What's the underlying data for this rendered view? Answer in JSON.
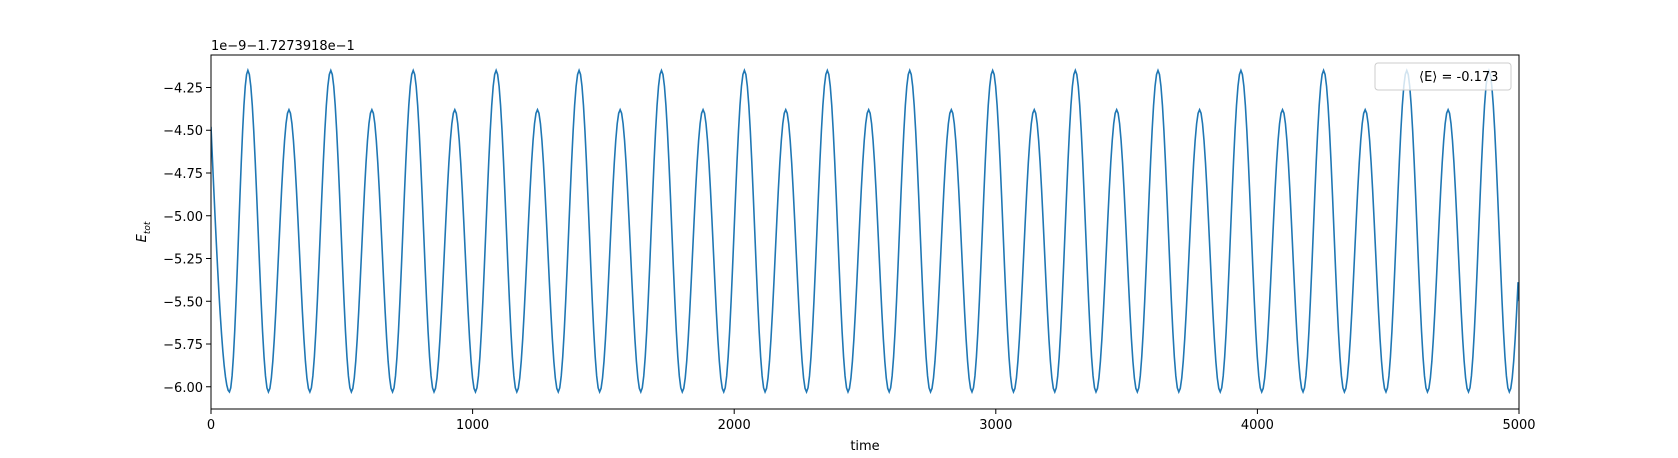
{
  "chart_data": {
    "type": "line",
    "title": "",
    "xlabel": "time",
    "ylabel_main": "E",
    "ylabel_sub": "tot",
    "offset_text": "1e−9−1.7273918e−1",
    "xlim": [
      0,
      5000
    ],
    "ylim": [
      -6.13,
      -4.06
    ],
    "xticks": [
      0,
      1000,
      2000,
      3000,
      4000,
      5000
    ],
    "xtick_labels": [
      "0",
      "1000",
      "2000",
      "3000",
      "4000",
      "5000"
    ],
    "yticks": [
      -6.0,
      -5.75,
      -5.5,
      -5.25,
      -5.0,
      -4.75,
      -4.5,
      -4.25
    ],
    "ytick_labels": [
      "−6.00",
      "−5.75",
      "−5.50",
      "−5.25",
      "−5.00",
      "−4.75",
      "−4.50",
      "−4.25"
    ],
    "grid": false,
    "legend_position": "top-right",
    "series": [
      {
        "name": "⟨E⟩ = -0.173",
        "color": "#1f77b4",
        "x_start": 0,
        "x_end": 5000,
        "start_value": -4.48,
        "trough": -6.03,
        "high_peak": -4.15,
        "low_peak": -4.38,
        "period": 156,
        "high_peak_times": [
          141,
          458,
          773,
          1090,
          1407,
          1722,
          2039,
          2356,
          2671,
          2988,
          3304,
          3620,
          3937,
          4253,
          4571,
          4885
        ],
        "low_peak_times": [
          298,
          615,
          932,
          1248,
          1564,
          1881,
          2197,
          2514,
          2830,
          3147,
          3462,
          3779,
          4096,
          4412,
          4729
        ]
      }
    ]
  }
}
